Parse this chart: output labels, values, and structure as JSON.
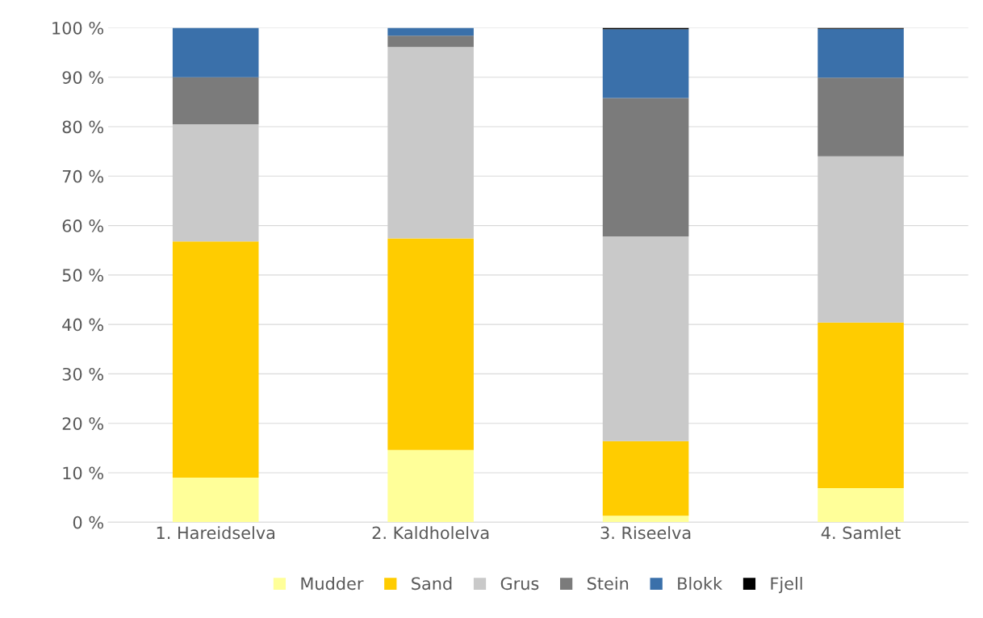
{
  "chart_data": {
    "type": "bar",
    "stacked": true,
    "categories": [
      "1. Hareidselva",
      "2. Kaldholelva",
      "3. Riseelva",
      "4. Samlet"
    ],
    "series": [
      {
        "name": "Mudder",
        "color": "#ffff99",
        "values": [
          9.0,
          14.6,
          1.3,
          6.9
        ]
      },
      {
        "name": "Sand",
        "color": "#ffcc00",
        "values": [
          47.8,
          42.8,
          15.1,
          33.5
        ]
      },
      {
        "name": "Grus",
        "color": "#c9c9c9",
        "values": [
          23.7,
          38.7,
          41.4,
          33.6
        ]
      },
      {
        "name": "Stein",
        "color": "#7b7b7b",
        "values": [
          9.5,
          2.3,
          28.0,
          15.9
        ]
      },
      {
        "name": "Blokk",
        "color": "#3a70aa",
        "values": [
          10.0,
          1.6,
          13.9,
          9.9
        ]
      },
      {
        "name": "Fjell",
        "color": "#000000",
        "values": [
          null,
          null,
          0.3,
          0.2
        ]
      }
    ],
    "ylim": [
      0,
      100
    ],
    "yticks": [
      {
        "value": 0,
        "label": "0 %"
      },
      {
        "value": 10,
        "label": "10 %"
      },
      {
        "value": 20,
        "label": "20 %"
      },
      {
        "value": 30,
        "label": "30 %"
      },
      {
        "value": 40,
        "label": "40 %"
      },
      {
        "value": 50,
        "label": "50 %"
      },
      {
        "value": 60,
        "label": "60 %"
      },
      {
        "value": 70,
        "label": "70 %"
      },
      {
        "value": 80,
        "label": "80 %"
      },
      {
        "value": 90,
        "label": "90 %"
      },
      {
        "value": 100,
        "label": "100 %"
      }
    ],
    "grid": "y",
    "legend": "bottom"
  }
}
